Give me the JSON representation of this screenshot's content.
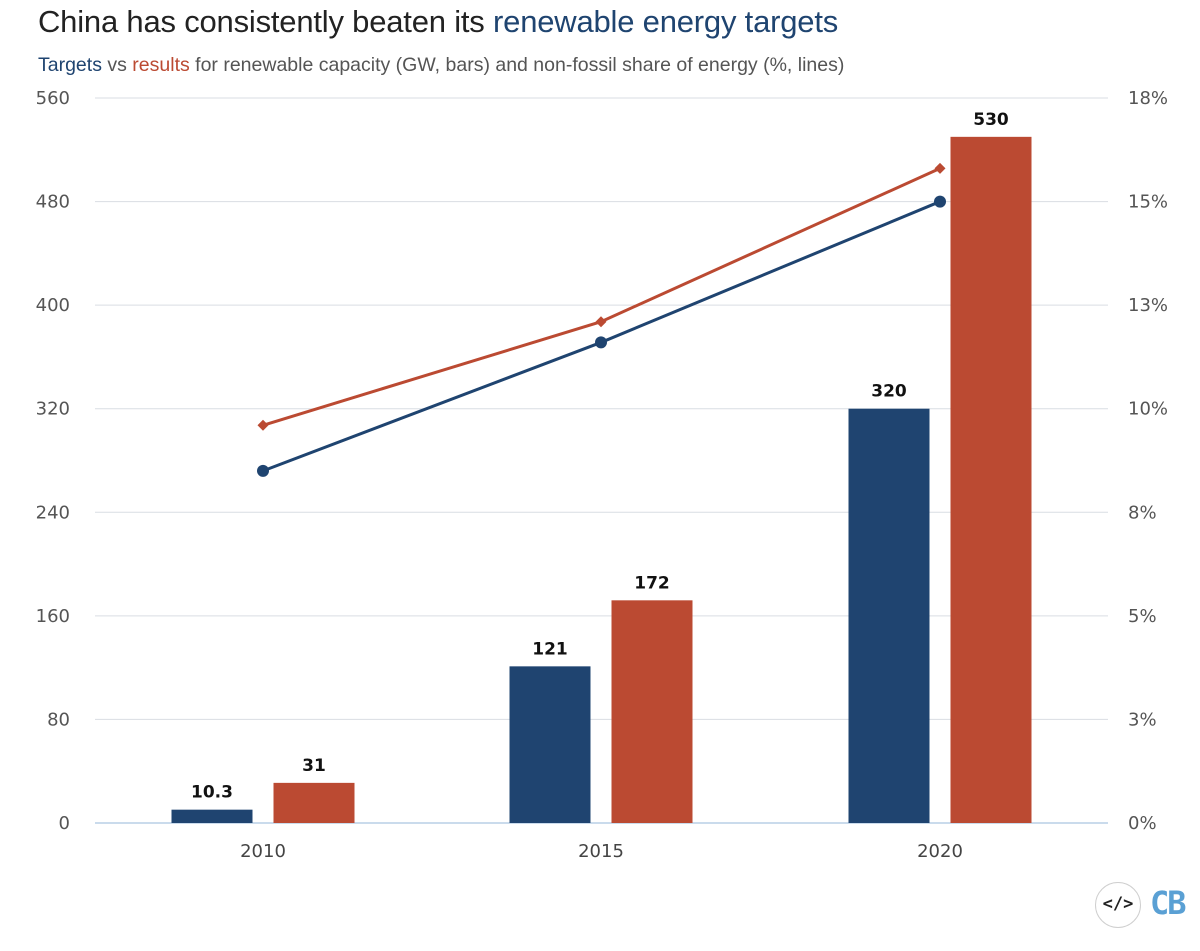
{
  "header": {
    "title_prefix": "China has consistently beaten its",
    "title_highlight": "renewable energy targets",
    "subtitle_targets": "Targets",
    "subtitle_vs": "vs",
    "subtitle_results": "results",
    "subtitle_rest": "for renewable capacity (GW, bars) and non-fossil share of energy (%, lines)"
  },
  "logo": {
    "code_symbol": "</>",
    "brand": "CB"
  },
  "colors": {
    "targets": "#1f4470",
    "results": "#bb4a32",
    "grid": "#d9dde3",
    "axis": "#b9cfe6"
  },
  "chart_data": {
    "type": "bar",
    "categories": [
      "2010",
      "2015",
      "2020"
    ],
    "series": [
      {
        "name": "Targets",
        "kind": "bar",
        "axis": "left",
        "values": [
          10.3,
          121,
          320
        ],
        "labels": [
          "10.3",
          "121",
          "320"
        ]
      },
      {
        "name": "results",
        "kind": "bar",
        "axis": "left",
        "values": [
          31,
          172,
          530
        ],
        "labels": [
          "31",
          "172",
          "530"
        ]
      },
      {
        "name": "Targets",
        "kind": "line",
        "axis": "right",
        "marker": "circle",
        "values": [
          8.5,
          11.6,
          15
        ]
      },
      {
        "name": "results",
        "kind": "line",
        "axis": "right",
        "marker": "diamond",
        "values": [
          9.6,
          12.1,
          15.8
        ]
      }
    ],
    "y_left": {
      "min": 0,
      "max": 560,
      "ticks": [
        0,
        80,
        160,
        240,
        320,
        400,
        480,
        560
      ]
    },
    "y_right": {
      "min": 0,
      "max": 17.5,
      "ticks": [
        "0%",
        "3%",
        "5%",
        "8%",
        "10%",
        "13%",
        "15%",
        "18%"
      ]
    },
    "grid": true
  }
}
